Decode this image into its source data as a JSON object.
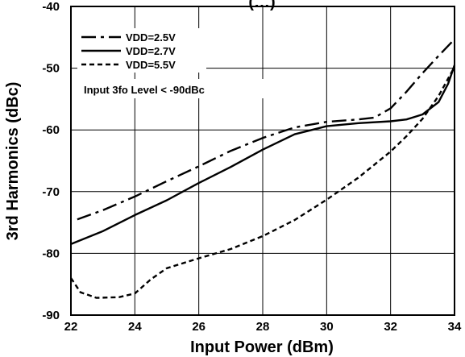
{
  "chart_data": {
    "type": "line",
    "title": "(…)",
    "xlabel": "Input Power (dBm)",
    "ylabel": "3rd Harmonics (dBc)",
    "xlim": [
      22,
      34
    ],
    "ylim": [
      -90,
      -40
    ],
    "x_ticks": [
      "22",
      "24",
      "26",
      "28",
      "30",
      "32",
      "34"
    ],
    "y_ticks": [
      "-40",
      "-50",
      "-60",
      "-70",
      "-80",
      "-90"
    ],
    "grid": true,
    "legend_position": "top-left",
    "annotation": "Input 3fo Level < -90dBc",
    "series": [
      {
        "name": "VDD=2.5V",
        "dash": "long-dash-dot",
        "points": [
          [
            22.2,
            -74.5
          ],
          [
            23,
            -73.0
          ],
          [
            24,
            -70.8
          ],
          [
            25,
            -68.3
          ],
          [
            26,
            -65.9
          ],
          [
            27,
            -63.4
          ],
          [
            28,
            -61.3
          ],
          [
            29,
            -59.6
          ],
          [
            30,
            -58.7
          ],
          [
            31,
            -58.3
          ],
          [
            31.5,
            -58.0
          ],
          [
            32,
            -56.5
          ],
          [
            32.5,
            -53.8
          ],
          [
            33,
            -50.8
          ],
          [
            33.5,
            -48.0
          ],
          [
            34,
            -45.3
          ]
        ]
      },
      {
        "name": "VDD=2.7V",
        "dash": "solid",
        "points": [
          [
            22,
            -78.5
          ],
          [
            23,
            -76.4
          ],
          [
            24,
            -73.8
          ],
          [
            25,
            -71.4
          ],
          [
            26,
            -68.6
          ],
          [
            27,
            -66.0
          ],
          [
            28,
            -63.2
          ],
          [
            29,
            -60.7
          ],
          [
            30,
            -59.4
          ],
          [
            31,
            -58.9
          ],
          [
            32,
            -58.6
          ],
          [
            32.5,
            -58.3
          ],
          [
            33,
            -57.5
          ],
          [
            33.5,
            -55.5
          ],
          [
            33.8,
            -52.5
          ],
          [
            34,
            -49.5
          ]
        ]
      },
      {
        "name": "VDD=5.5V",
        "dash": "short-dash",
        "points": [
          [
            22,
            -84.0
          ],
          [
            22.3,
            -86.3
          ],
          [
            22.8,
            -87.2
          ],
          [
            23.5,
            -87.1
          ],
          [
            24,
            -86.5
          ],
          [
            24.5,
            -84.2
          ],
          [
            25,
            -82.4
          ],
          [
            26,
            -80.8
          ],
          [
            27,
            -79.3
          ],
          [
            28,
            -77.2
          ],
          [
            29,
            -74.6
          ],
          [
            30,
            -71.3
          ],
          [
            31,
            -67.7
          ],
          [
            32,
            -63.5
          ],
          [
            32.5,
            -61.0
          ],
          [
            33,
            -58.2
          ],
          [
            33.5,
            -54.5
          ],
          [
            34,
            -49.8
          ]
        ]
      }
    ]
  }
}
